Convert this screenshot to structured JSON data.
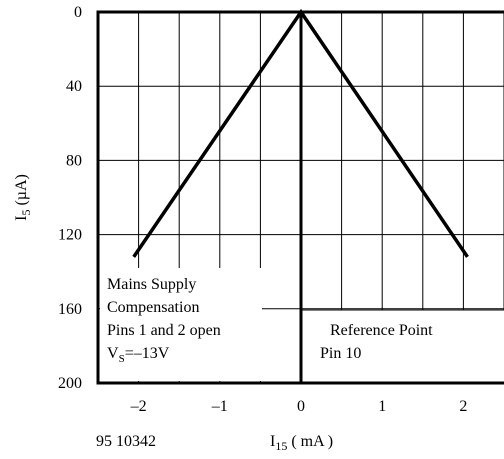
{
  "chart_data": {
    "type": "line",
    "x_label": {
      "main": "I",
      "sub": "15",
      "rest": " ( mA )"
    },
    "y_label": {
      "main": "I",
      "sub": "5",
      "rest": " (µA)"
    },
    "figure_code": "95 10342",
    "xlim": [
      -2.5,
      2.5
    ],
    "xticks": [
      {
        "value": -2,
        "label": "–2"
      },
      {
        "value": -1,
        "label": "–1"
      },
      0,
      1,
      2
    ],
    "x_minor_grid": [
      -2.5,
      -2,
      -1.5,
      -1,
      -0.5,
      0,
      0.5,
      1,
      1.5,
      2,
      2.5
    ],
    "ylim": [
      0,
      200
    ],
    "y_inverted": true,
    "yticks": [
      0,
      40,
      80,
      120,
      160,
      200
    ],
    "grid": true,
    "series": [
      {
        "color": "#000000",
        "x": [
          -2.06,
          0,
          2.05
        ],
        "values": [
          132,
          0,
          132
        ]
      }
    ],
    "annotations": {
      "left": [
        "Mains Supply",
        "Compensation",
        "Pins 1 and 2 open"
      ],
      "left_vs": {
        "main": "V",
        "sub": "S",
        "rest": "=–13V"
      },
      "right": [
        "Reference Point",
        "Pin 10"
      ]
    }
  }
}
